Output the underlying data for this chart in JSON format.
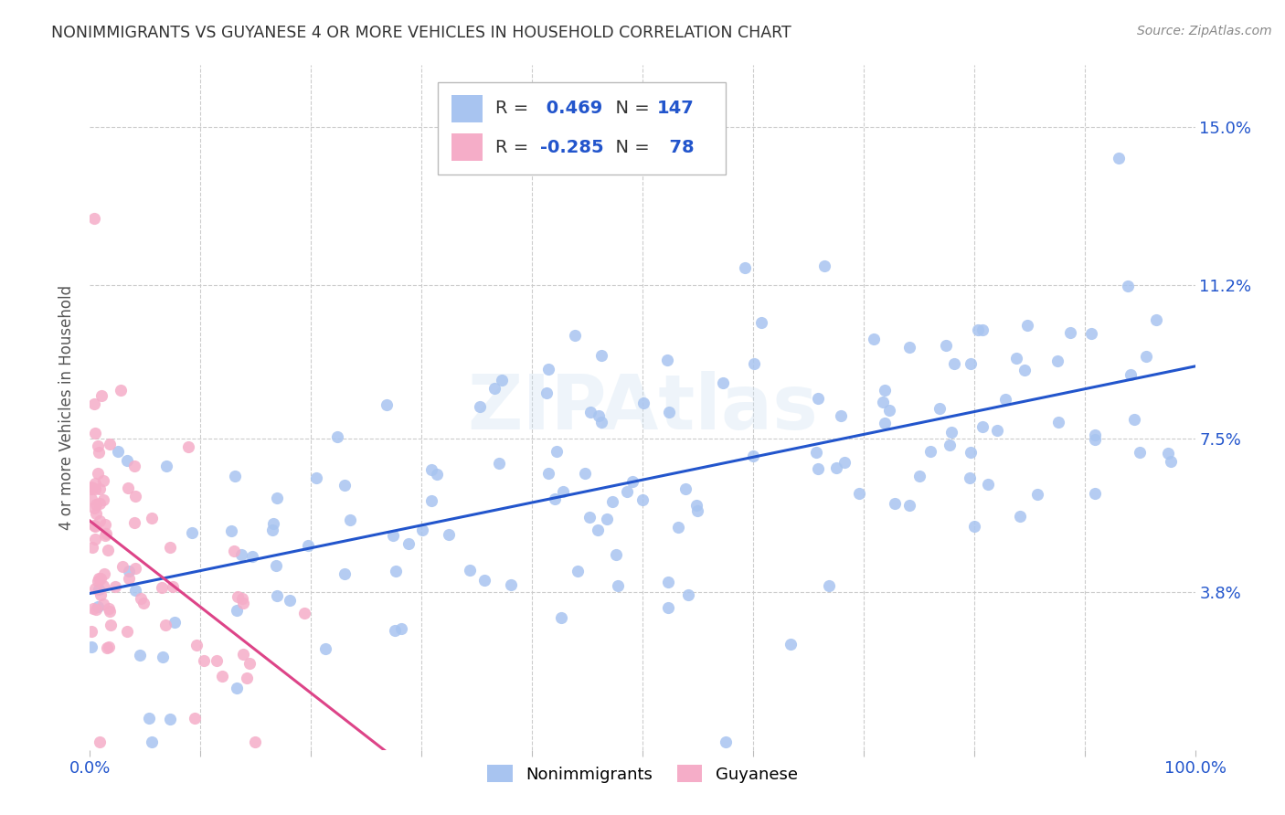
{
  "title": "NONIMMIGRANTS VS GUYANESE 4 OR MORE VEHICLES IN HOUSEHOLD CORRELATION CHART",
  "source": "Source: ZipAtlas.com",
  "ylabel": "4 or more Vehicles in Household",
  "ytick_labels": [
    "3.8%",
    "7.5%",
    "11.2%",
    "15.0%"
  ],
  "ytick_values": [
    0.038,
    0.075,
    0.112,
    0.15
  ],
  "legend1_r": "0.469",
  "legend1_n": "147",
  "legend2_r": "-0.285",
  "legend2_n": "78",
  "blue_color": "#a8c4f0",
  "pink_color": "#f5adc8",
  "blue_line_color": "#2255cc",
  "pink_line_color": "#dd4488",
  "watermark": "ZIPAtlas"
}
